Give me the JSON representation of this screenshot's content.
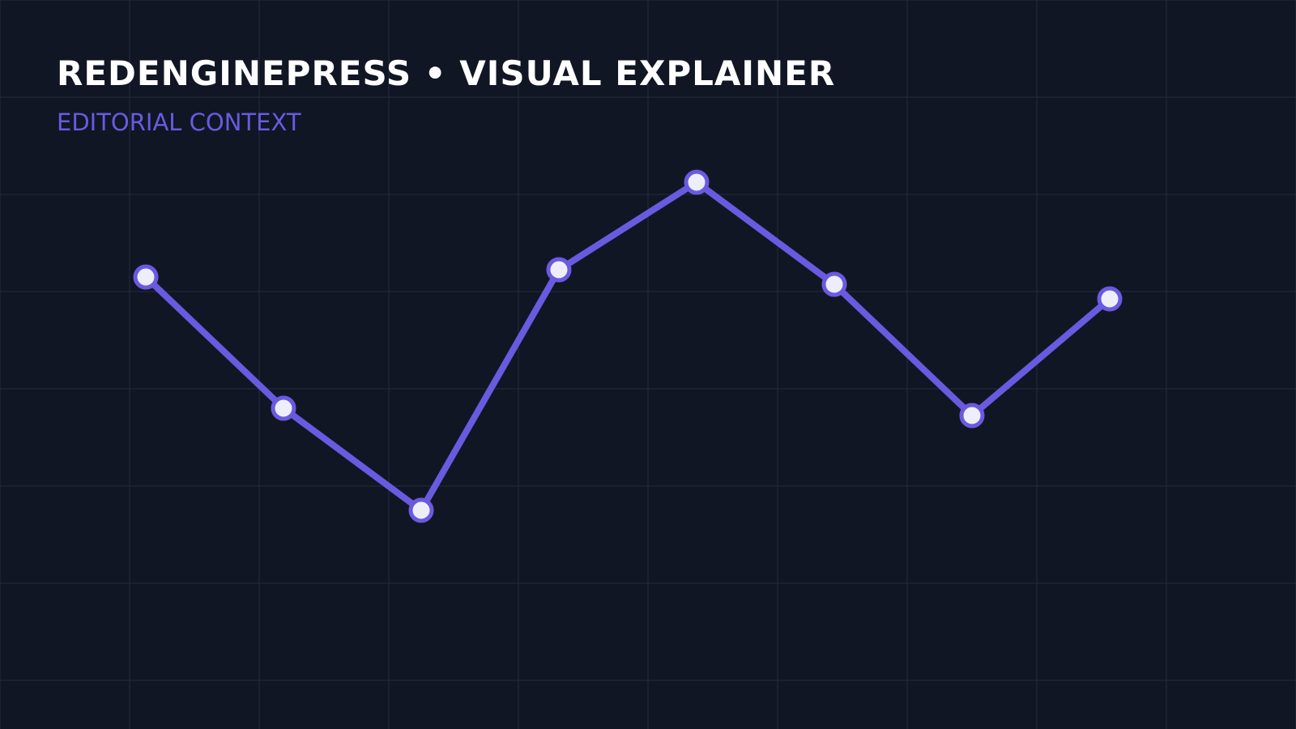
{
  "header": {
    "title": "REDENGINEPRESS • VISUAL EXPLAINER",
    "subtitle": "EDITORIAL CONTEXT"
  },
  "colors": {
    "background": "#111625",
    "grid": "#252c3c",
    "accent": "#6a5ae0",
    "marker_fill": "#eeeefa",
    "title": "#ffffff"
  },
  "chart_data": {
    "type": "line",
    "title": "",
    "xlabel": "",
    "ylabel": "",
    "grid": true,
    "legend": "none",
    "x": [
      1,
      2,
      3,
      4,
      5,
      6,
      7,
      8
    ],
    "ylim": [
      0,
      10
    ],
    "series": [
      {
        "values": [
          6.2,
          4.4,
          3.0,
          6.3,
          7.5,
          6.1,
          4.3,
          5.9
        ]
      }
    ]
  }
}
